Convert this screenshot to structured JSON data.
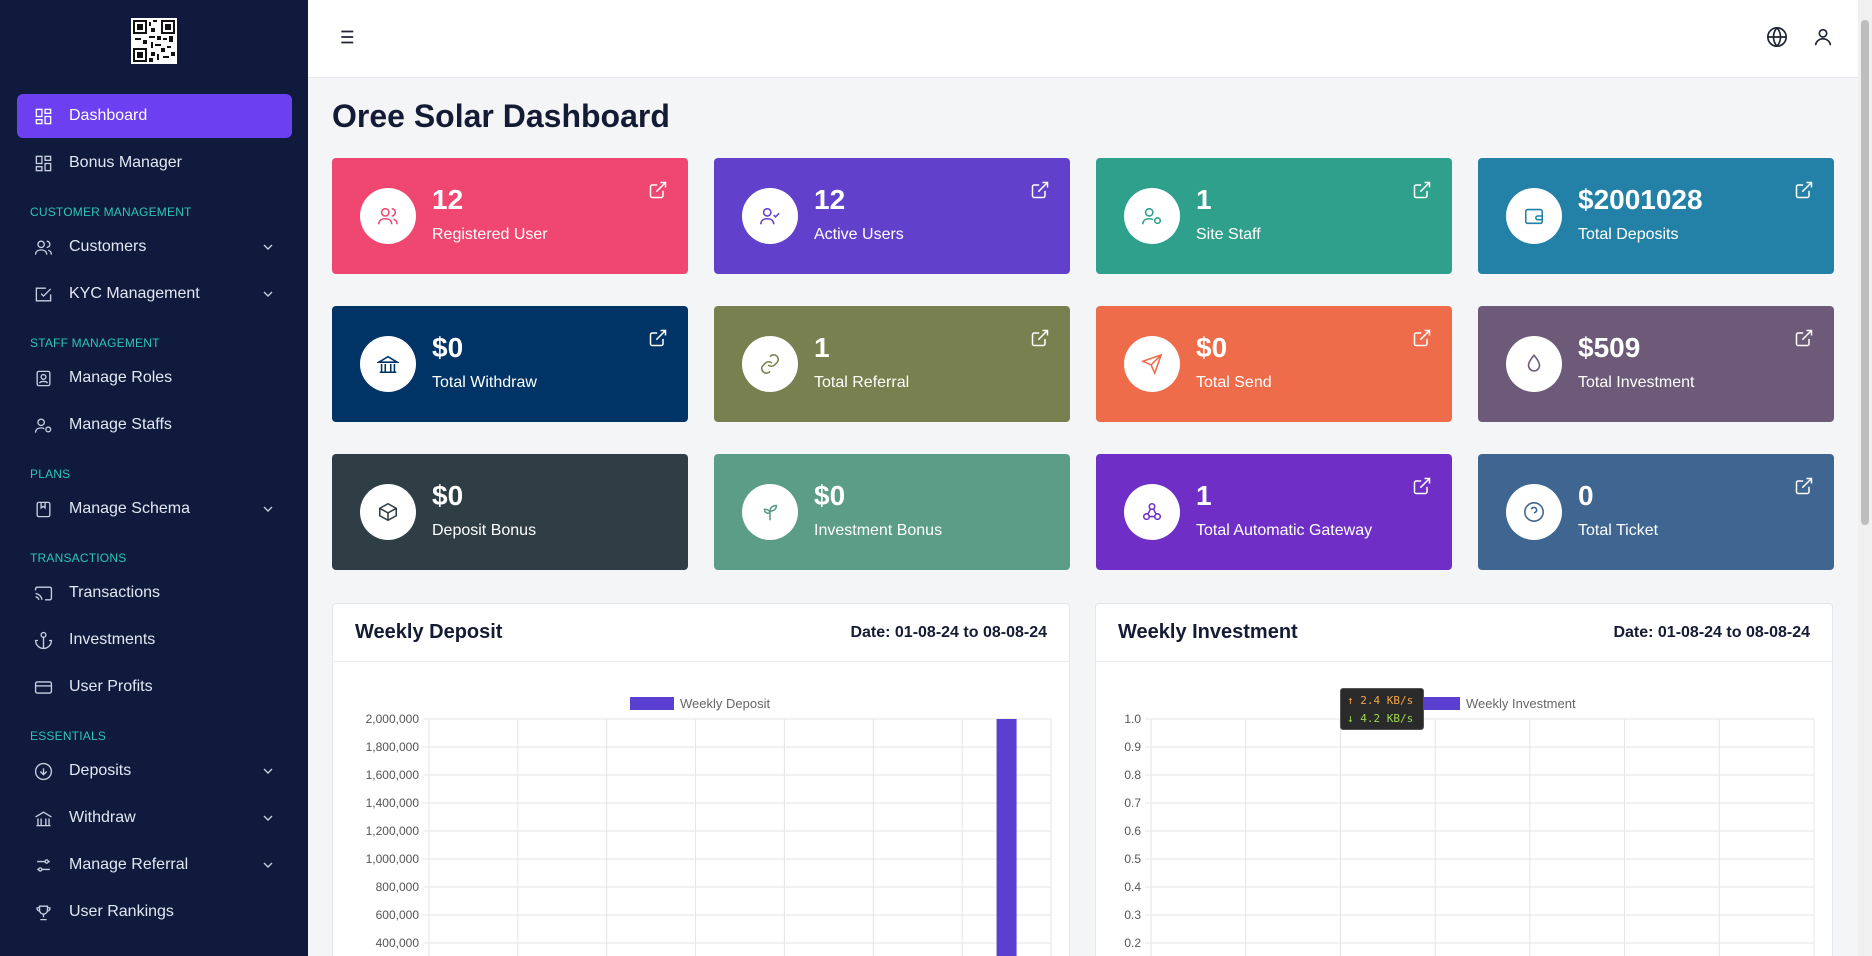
{
  "sidebar": {
    "items": [
      {
        "label": "Dashboard"
      },
      {
        "label": "Bonus Manager"
      },
      {
        "label": "Customers"
      },
      {
        "label": "KYC Management"
      },
      {
        "label": "Manage Roles"
      },
      {
        "label": "Manage Staffs"
      },
      {
        "label": "Manage Schema"
      },
      {
        "label": "Transactions"
      },
      {
        "label": "Investments"
      },
      {
        "label": "User Profits"
      },
      {
        "label": "Deposits"
      },
      {
        "label": "Withdraw"
      },
      {
        "label": "Manage Referral"
      },
      {
        "label": "User Rankings"
      }
    ],
    "sections": {
      "customer": "CUSTOMER MANAGEMENT",
      "staff": "STAFF MANAGEMENT",
      "plans": "PLANS",
      "transactions": "TRANSACTIONS",
      "essentials": "ESSENTIALS"
    }
  },
  "page": {
    "title": "Oree Solar Dashboard"
  },
  "cards": [
    {
      "value": "12",
      "label": "Registered User",
      "color": "#ef4770",
      "icon": "users-icon"
    },
    {
      "value": "12",
      "label": "Active Users",
      "color": "#6140cc",
      "icon": "user-check-icon"
    },
    {
      "value": "1",
      "label": "Site Staff",
      "color": "#2ea08b",
      "icon": "user-cog-icon"
    },
    {
      "value": "$2001028",
      "label": "Total Deposits",
      "color": "#2380a6",
      "icon": "wallet-icon"
    },
    {
      "value": "$0",
      "label": "Total Withdraw",
      "color": "#003366",
      "icon": "bank-icon"
    },
    {
      "value": "1",
      "label": "Total Referral",
      "color": "#77804e",
      "icon": "link-icon"
    },
    {
      "value": "$0",
      "label": "Total Send",
      "color": "#ef6c4b",
      "icon": "send-icon"
    },
    {
      "value": "$509",
      "label": "Total Investment",
      "color": "#6c5a78",
      "icon": "drop-icon"
    },
    {
      "value": "$0",
      "label": "Deposit Bonus",
      "color": "#2f3d45",
      "icon": "box-icon"
    },
    {
      "value": "$0",
      "label": "Investment Bonus",
      "color": "#5b9d86",
      "icon": "sprout-icon"
    },
    {
      "value": "1",
      "label": "Total Automatic Gateway",
      "color": "#6f2fc7",
      "icon": "webhook-icon"
    },
    {
      "value": "0",
      "label": "Total Ticket",
      "color": "#3f6591",
      "icon": "help-circle-icon"
    }
  ],
  "charts": {
    "deposit": {
      "title": "Weekly Deposit",
      "date": "Date: 01-08-24 to 08-08-24"
    },
    "investment": {
      "title": "Weekly Investment",
      "date": "Date: 01-08-24 to 08-08-24"
    }
  },
  "chart_data": [
    {
      "type": "bar",
      "title": "Weekly Deposit",
      "legend": "Weekly Deposit",
      "color": "#5b3fd1",
      "series": [
        {
          "name": "Weekly Deposit",
          "values": [
            0,
            0,
            0,
            0,
            0,
            0,
            2001028
          ]
        }
      ],
      "yticks": [
        "2,000,000",
        "1,800,000",
        "1,600,000",
        "1,400,000",
        "1,200,000",
        "1,000,000",
        "800,000",
        "600,000",
        "400,000"
      ],
      "ylim": [
        0,
        2000000
      ]
    },
    {
      "type": "bar",
      "title": "Weekly Investment",
      "legend": "Weekly Investment",
      "color": "#5b3fd1",
      "series": [
        {
          "name": "Weekly Investment",
          "values": [
            0,
            0,
            0,
            0,
            0,
            0,
            0
          ]
        }
      ],
      "yticks": [
        "1.0",
        "0.9",
        "0.8",
        "0.7",
        "0.6",
        "0.5",
        "0.4",
        "0.3",
        "0.2"
      ],
      "ylim": [
        0,
        1
      ]
    }
  ],
  "netspeed": {
    "up": "↑ 2.4 KB/s",
    "down": "↓ 4.2 KB/s"
  }
}
